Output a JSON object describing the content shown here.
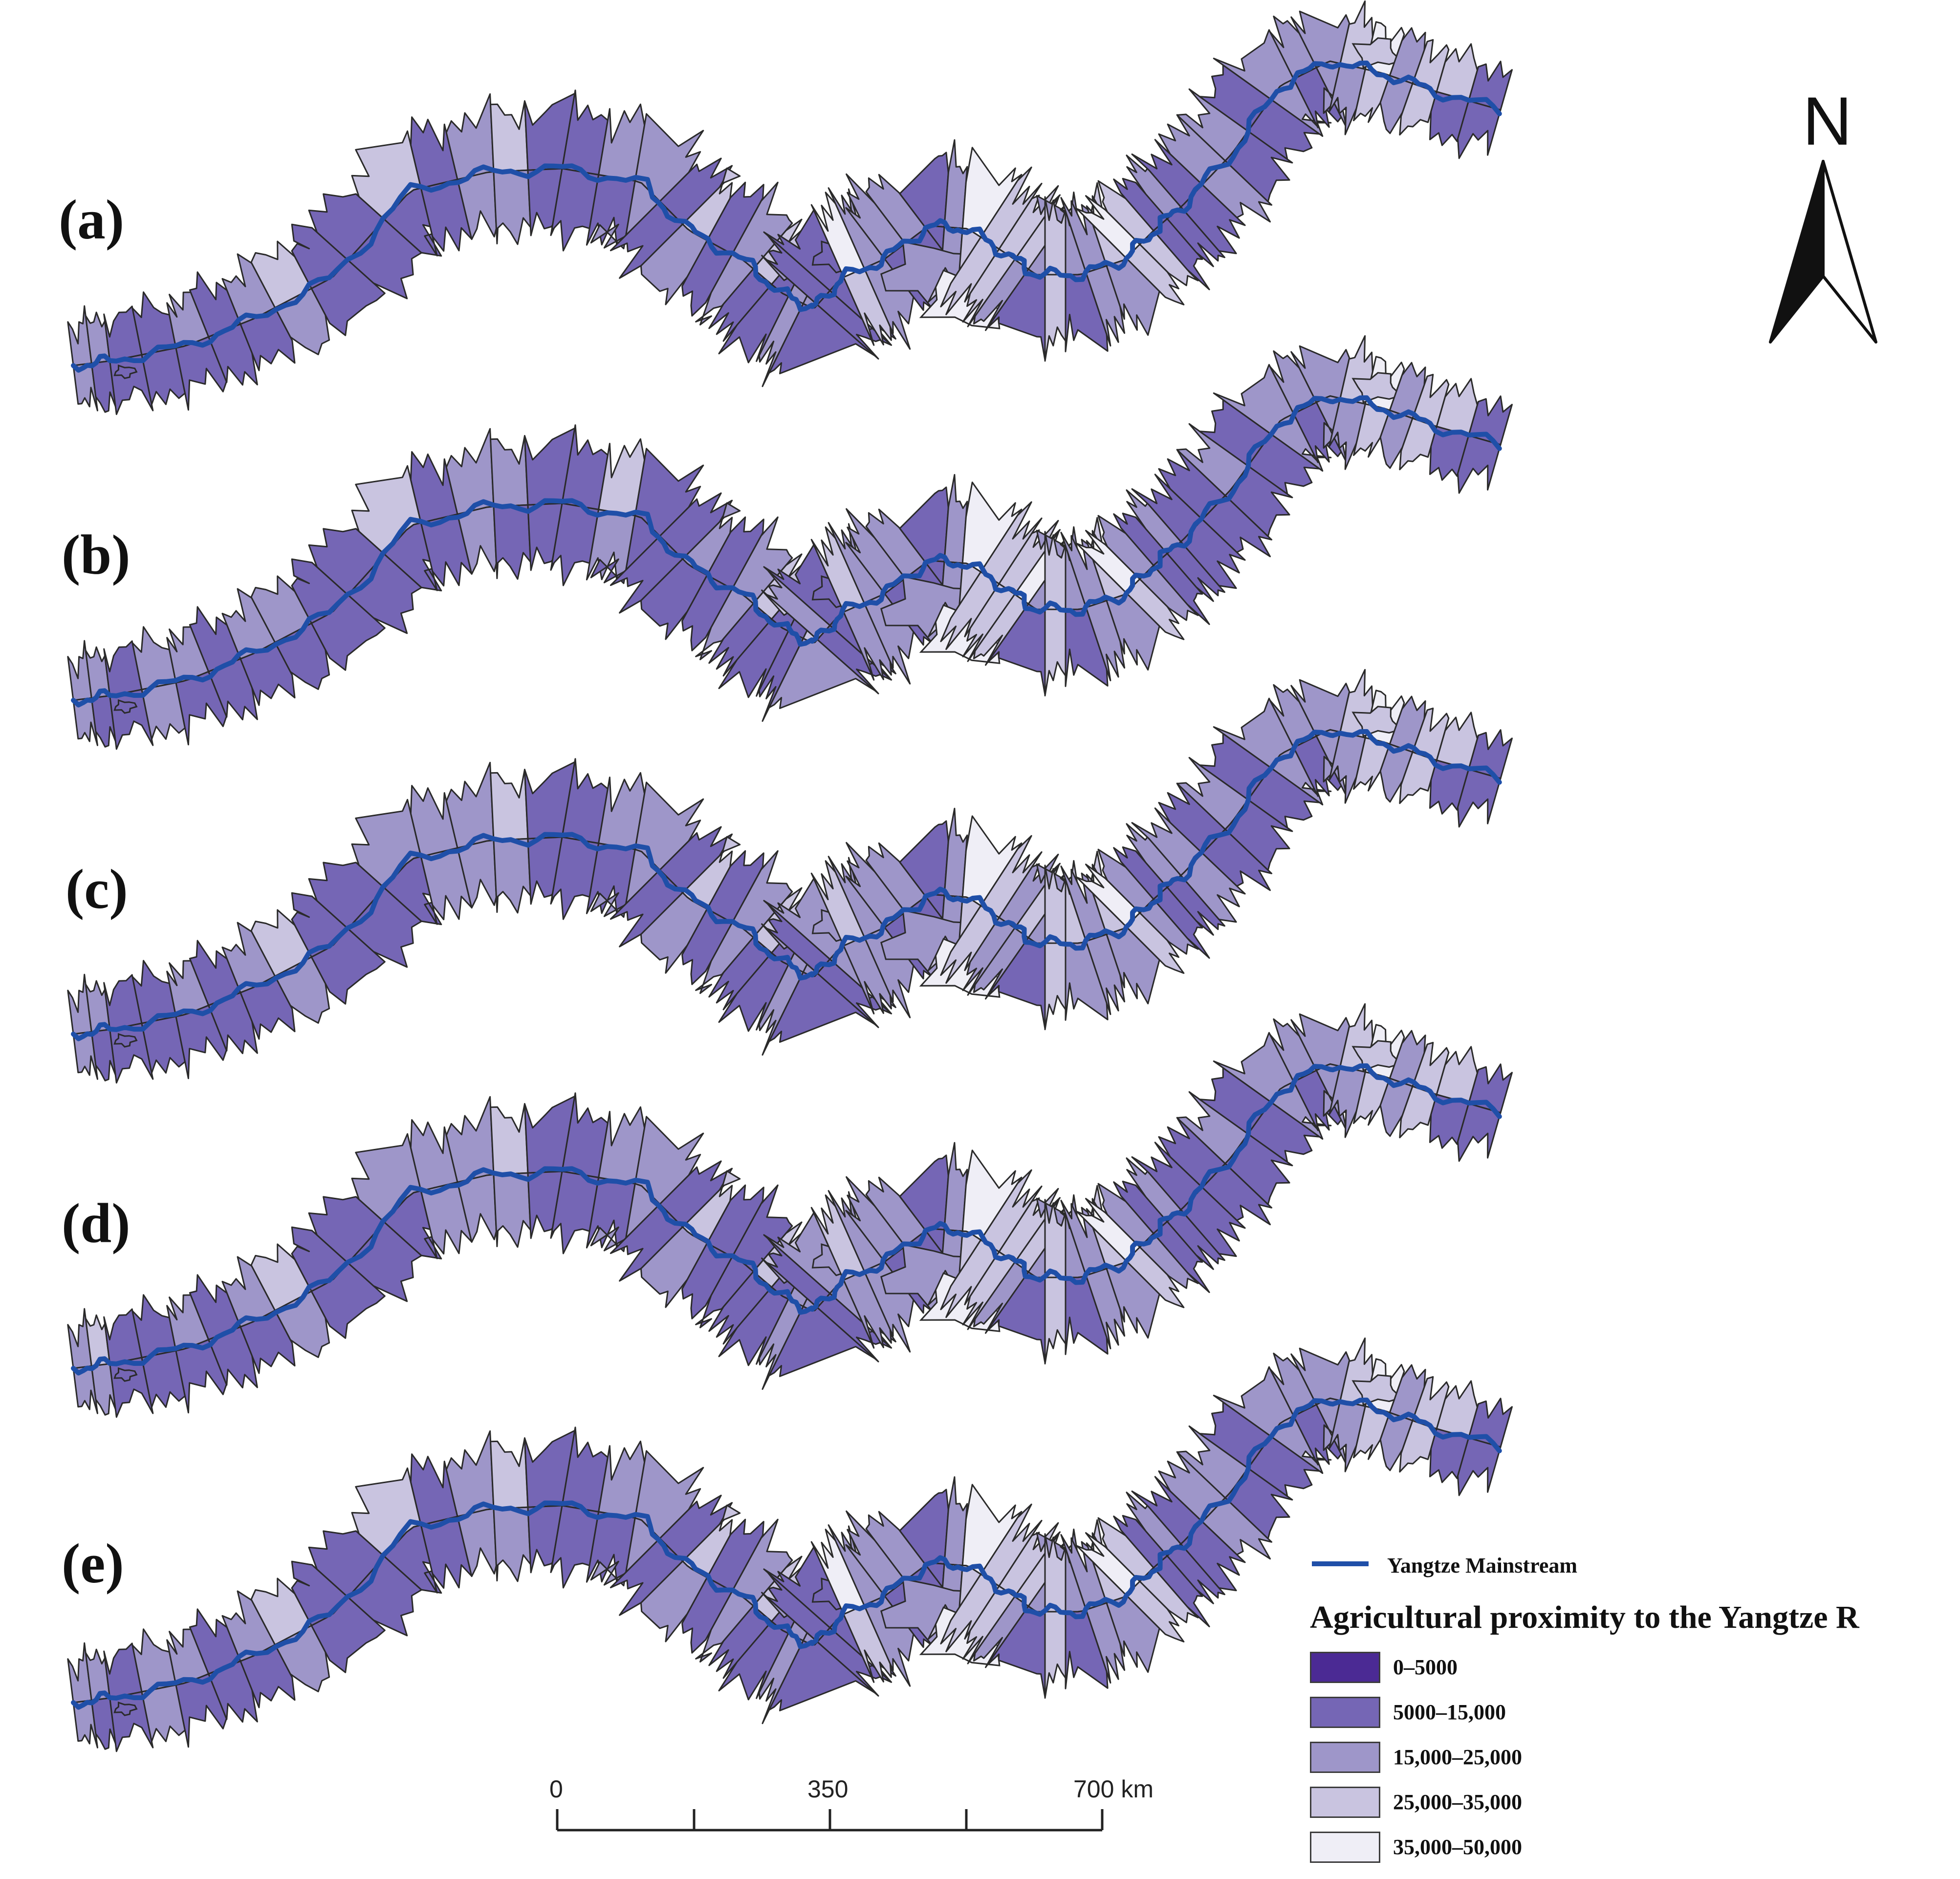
{
  "panels": [
    {
      "label": "(a)",
      "classes": [
        2,
        1,
        1,
        1,
        1,
        1,
        2,
        2,
        1,
        1,
        2,
        1,
        2,
        2,
        1,
        1,
        1,
        2,
        1,
        2,
        1,
        2,
        2,
        1,
        2,
        1,
        1,
        1,
        3,
        2,
        2,
        1,
        1,
        2,
        4,
        3,
        3,
        2,
        2,
        3,
        1,
        2,
        3,
        3,
        3,
        1,
        1,
        1,
        2,
        1,
        1,
        2,
        1,
        2,
        3,
        3,
        2,
        3,
        2,
        1
      ]
    },
    {
      "label": "(b)",
      "classes": [
        2,
        1,
        1,
        2,
        1,
        1,
        2,
        1,
        1,
        1,
        2,
        1,
        2,
        1,
        1,
        1,
        2,
        1,
        1,
        1,
        1,
        2,
        2,
        1,
        1,
        2,
        2,
        1,
        2,
        2,
        2,
        1,
        1,
        2,
        4,
        3,
        3,
        3,
        2,
        3,
        1,
        2,
        3,
        3,
        2,
        1,
        1,
        1,
        1,
        1,
        1,
        2,
        1,
        2,
        3,
        3,
        2,
        3,
        2,
        1
      ]
    },
    {
      "label": "(c)",
      "classes": [
        2,
        1,
        1,
        1,
        1,
        1,
        2,
        2,
        1,
        1,
        1,
        2,
        2,
        2,
        1,
        1,
        1,
        2,
        1,
        2,
        1,
        2,
        2,
        1,
        2,
        1,
        1,
        2,
        2,
        2,
        2,
        1,
        1,
        2,
        4,
        3,
        2,
        2,
        2,
        3,
        2,
        2,
        3,
        3,
        2,
        1,
        1,
        2,
        1,
        1,
        1,
        2,
        1,
        2,
        3,
        3,
        2,
        3,
        2,
        1
      ]
    },
    {
      "label": "(d)",
      "classes": [
        2,
        2,
        1,
        1,
        1,
        1,
        2,
        2,
        1,
        1,
        1,
        2,
        2,
        2,
        1,
        1,
        1,
        2,
        1,
        2,
        1,
        1,
        2,
        1,
        2,
        1,
        1,
        2,
        2,
        2,
        2,
        1,
        1,
        2,
        4,
        3,
        3,
        2,
        2,
        3,
        1,
        2,
        3,
        3,
        2,
        1,
        1,
        1,
        1,
        1,
        1,
        2,
        1,
        2,
        3,
        3,
        2,
        3,
        2,
        1
      ]
    },
    {
      "label": "(e)",
      "classes": [
        2,
        1,
        1,
        2,
        1,
        1,
        2,
        2,
        1,
        1,
        2,
        1,
        2,
        2,
        1,
        1,
        1,
        2,
        1,
        2,
        1,
        2,
        2,
        1,
        2,
        1,
        1,
        1,
        3,
        2,
        2,
        1,
        1,
        2,
        4,
        3,
        3,
        2,
        2,
        3,
        1,
        2,
        3,
        3,
        3,
        1,
        1,
        1,
        2,
        1,
        1,
        2,
        1,
        2,
        3,
        3,
        2,
        3,
        2,
        1
      ]
    }
  ],
  "north_arrow": {
    "letter": "N"
  },
  "scale_bar": {
    "labels": [
      "0",
      "350",
      "700 km"
    ]
  },
  "legend": {
    "river_label": "Yangtze Mainstream",
    "river_color": "#1f4fa8",
    "title": "Agricultural proximity to the Yangtze R",
    "classes": [
      {
        "label": "0–5000",
        "color": "#4b2a94"
      },
      {
        "label": "5000–15,000",
        "color": "#7566b5"
      },
      {
        "label": "15,000–25,000",
        "color": "#9e96c9"
      },
      {
        "label": "25,000–35,000",
        "color": "#c9c4e0"
      },
      {
        "label": "35,000–50,000",
        "color": "#efeef6"
      }
    ]
  },
  "colors": {
    "boundary": "#2a2a2a"
  },
  "icons": {
    "north_arrow": "north-arrow-icon",
    "scale_bar": "scale-bar-icon"
  }
}
